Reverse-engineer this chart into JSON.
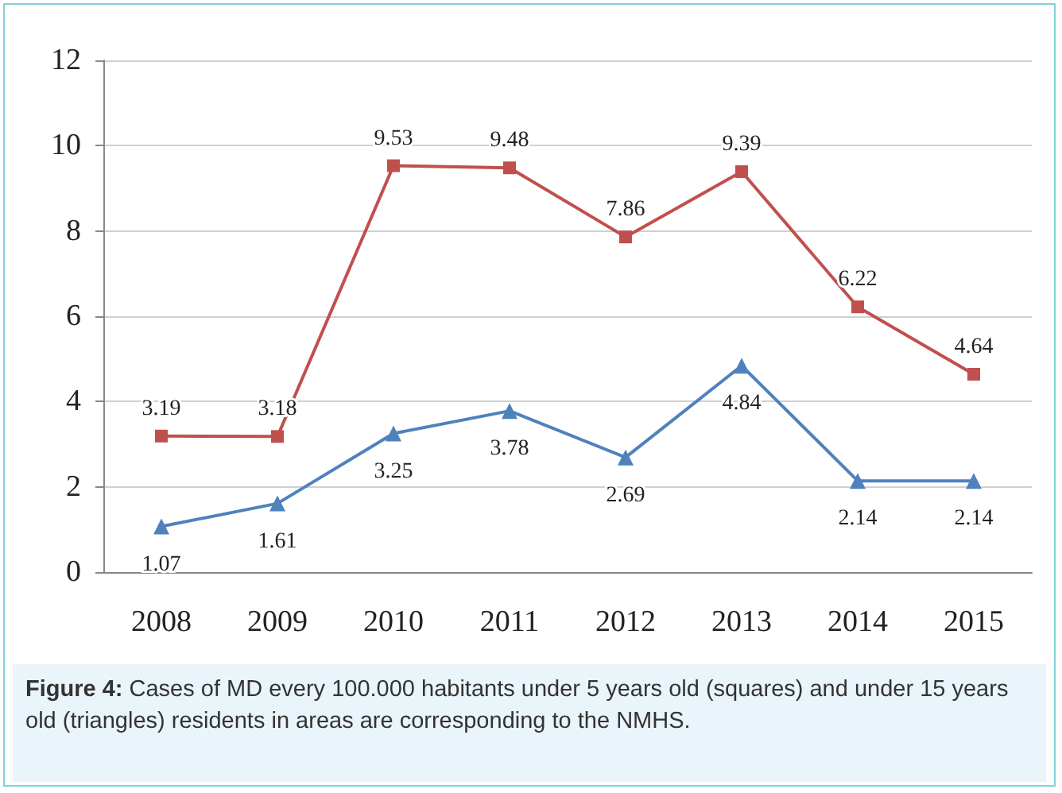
{
  "chart_data": {
    "type": "line",
    "categories": [
      "2008",
      "2009",
      "2010",
      "2011",
      "2012",
      "2013",
      "2014",
      "2015"
    ],
    "series": [
      {
        "color": "#c0504d",
        "marker": "square",
        "values": [
          3.19,
          3.18,
          9.53,
          9.48,
          7.86,
          9.39,
          6.22,
          4.64
        ]
      },
      {
        "color": "#4f81bd",
        "marker": "triangle",
        "values": [
          1.07,
          1.61,
          3.25,
          3.78,
          2.69,
          4.84,
          2.14,
          2.14
        ]
      }
    ],
    "ylim": [
      0,
      12
    ],
    "yticks": [
      0,
      2,
      4,
      6,
      8,
      10,
      12
    ],
    "grid": "y",
    "data_labels": true,
    "annotations": [
      "Figure 4: Cases of MD every 100.000 habitants under 5 years old (squares) and under 15 years old (triangles) residents in areas are corresponding to the NMHS."
    ]
  }
}
